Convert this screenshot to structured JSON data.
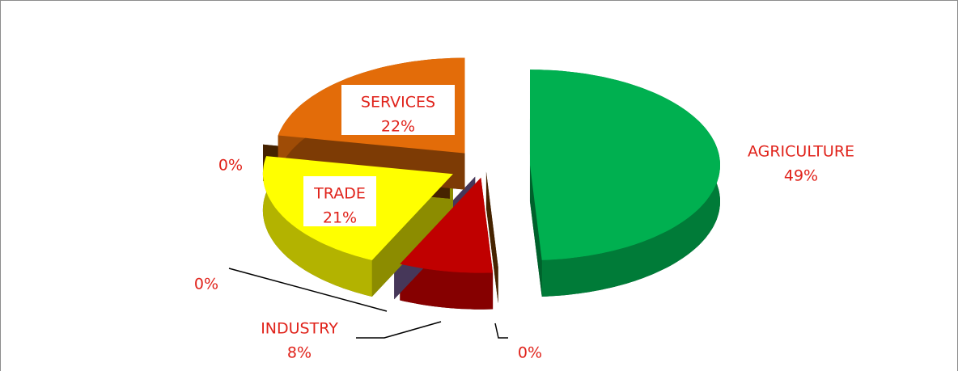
{
  "chart_data": {
    "type": "pie",
    "categories": [
      "AGRICULTURE",
      null,
      "INDUSTRY",
      null,
      "TRADE",
      null,
      "SERVICES"
    ],
    "values": [
      49,
      0,
      8,
      0,
      21,
      0,
      22
    ],
    "value_labels": [
      "49%",
      "0%",
      "8%",
      "0%",
      "21%",
      "0%",
      "22%"
    ],
    "colors": [
      "#00b050",
      "#7f3f00",
      "#c00000",
      "#8064a2",
      "#ffff00",
      "#7f3f00",
      "#e36c09"
    ]
  }
}
